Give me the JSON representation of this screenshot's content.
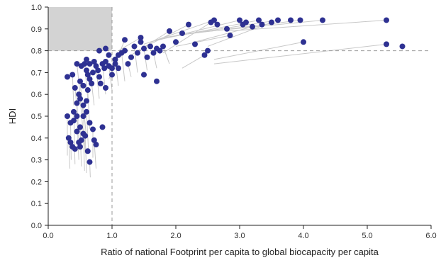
{
  "chart_data": {
    "type": "scatter",
    "title": "",
    "xlabel": "Ratio of national Footprint per capita to global biocapacity per capita",
    "ylabel": "HDI",
    "xlim": [
      0,
      6
    ],
    "ylim": [
      0,
      1
    ],
    "xticks": [
      "0.0",
      "1.0",
      "2.0",
      "3.0",
      "4.0",
      "5.0",
      "6.0"
    ],
    "yticks": [
      "0.0",
      "0.1",
      "0.2",
      "0.3",
      "0.4",
      "0.5",
      "0.6",
      "0.7",
      "0.8",
      "0.9",
      "1.0"
    ],
    "grid": false,
    "legend": "none",
    "reference_lines": {
      "x": 1.0,
      "y": 0.8
    },
    "target_region": {
      "x": [
        0,
        1.0
      ],
      "y": [
        0.8,
        1.0
      ]
    },
    "colors": {
      "point": "#2e3192",
      "trail": "#c8c8c8",
      "target": "#d3d3d3",
      "reference": "#999999"
    },
    "points": [
      {
        "x": 0.3,
        "y": 0.5
      },
      {
        "x": 0.35,
        "y": 0.47
      },
      {
        "x": 0.4,
        "y": 0.52
      },
      {
        "x": 0.45,
        "y": 0.5
      },
      {
        "x": 0.5,
        "y": 0.45
      },
      {
        "x": 0.55,
        "y": 0.42
      },
      {
        "x": 0.32,
        "y": 0.4
      },
      {
        "x": 0.38,
        "y": 0.36
      },
      {
        "x": 0.42,
        "y": 0.35
      },
      {
        "x": 0.48,
        "y": 0.38
      },
      {
        "x": 0.52,
        "y": 0.39
      },
      {
        "x": 0.58,
        "y": 0.41
      },
      {
        "x": 0.62,
        "y": 0.34
      },
      {
        "x": 0.65,
        "y": 0.29
      },
      {
        "x": 0.55,
        "y": 0.5
      },
      {
        "x": 0.6,
        "y": 0.52
      },
      {
        "x": 0.65,
        "y": 0.47
      },
      {
        "x": 0.7,
        "y": 0.44
      },
      {
        "x": 0.72,
        "y": 0.39
      },
      {
        "x": 0.75,
        "y": 0.37
      },
      {
        "x": 0.85,
        "y": 0.45
      },
      {
        "x": 0.45,
        "y": 0.56
      },
      {
        "x": 0.5,
        "y": 0.58
      },
      {
        "x": 0.55,
        "y": 0.55
      },
      {
        "x": 0.6,
        "y": 0.57
      },
      {
        "x": 0.42,
        "y": 0.63
      },
      {
        "x": 0.48,
        "y": 0.6
      },
      {
        "x": 0.5,
        "y": 0.66
      },
      {
        "x": 0.55,
        "y": 0.64
      },
      {
        "x": 0.62,
        "y": 0.62
      },
      {
        "x": 0.3,
        "y": 0.68
      },
      {
        "x": 0.38,
        "y": 0.69
      },
      {
        "x": 0.45,
        "y": 0.74
      },
      {
        "x": 0.52,
        "y": 0.73
      },
      {
        "x": 0.57,
        "y": 0.74
      },
      {
        "x": 0.6,
        "y": 0.71
      },
      {
        "x": 0.62,
        "y": 0.69
      },
      {
        "x": 0.65,
        "y": 0.67
      },
      {
        "x": 0.68,
        "y": 0.65
      },
      {
        "x": 0.7,
        "y": 0.7
      },
      {
        "x": 0.72,
        "y": 0.75
      },
      {
        "x": 0.75,
        "y": 0.73
      },
      {
        "x": 0.78,
        "y": 0.71
      },
      {
        "x": 0.8,
        "y": 0.68
      },
      {
        "x": 0.82,
        "y": 0.65
      },
      {
        "x": 0.85,
        "y": 0.74
      },
      {
        "x": 0.88,
        "y": 0.72
      },
      {
        "x": 0.9,
        "y": 0.75
      },
      {
        "x": 0.95,
        "y": 0.73
      },
      {
        "x": 1.0,
        "y": 0.72
      },
      {
        "x": 1.05,
        "y": 0.76
      },
      {
        "x": 1.1,
        "y": 0.78
      },
      {
        "x": 1.15,
        "y": 0.79
      },
      {
        "x": 1.2,
        "y": 0.8
      },
      {
        "x": 0.9,
        "y": 0.63
      },
      {
        "x": 1.0,
        "y": 0.69
      },
      {
        "x": 0.6,
        "y": 0.76
      },
      {
        "x": 0.65,
        "y": 0.74
      },
      {
        "x": 0.8,
        "y": 0.8
      },
      {
        "x": 0.9,
        "y": 0.81
      },
      {
        "x": 0.95,
        "y": 0.78
      },
      {
        "x": 1.05,
        "y": 0.74
      },
      {
        "x": 1.1,
        "y": 0.72
      },
      {
        "x": 1.25,
        "y": 0.74
      },
      {
        "x": 1.3,
        "y": 0.77
      },
      {
        "x": 1.35,
        "y": 0.82
      },
      {
        "x": 1.4,
        "y": 0.79
      },
      {
        "x": 1.45,
        "y": 0.84
      },
      {
        "x": 1.5,
        "y": 0.81
      },
      {
        "x": 1.55,
        "y": 0.77
      },
      {
        "x": 1.6,
        "y": 0.82
      },
      {
        "x": 1.65,
        "y": 0.79
      },
      {
        "x": 1.7,
        "y": 0.81
      },
      {
        "x": 1.75,
        "y": 0.8
      },
      {
        "x": 1.8,
        "y": 0.82
      },
      {
        "x": 1.5,
        "y": 0.69
      },
      {
        "x": 1.7,
        "y": 0.66
      },
      {
        "x": 1.2,
        "y": 0.85
      },
      {
        "x": 1.45,
        "y": 0.86
      },
      {
        "x": 1.9,
        "y": 0.89
      },
      {
        "x": 2.0,
        "y": 0.84
      },
      {
        "x": 2.1,
        "y": 0.88
      },
      {
        "x": 2.2,
        "y": 0.92
      },
      {
        "x": 2.3,
        "y": 0.83
      },
      {
        "x": 2.45,
        "y": 0.78
      },
      {
        "x": 2.5,
        "y": 0.8
      },
      {
        "x": 2.55,
        "y": 0.93
      },
      {
        "x": 2.6,
        "y": 0.94
      },
      {
        "x": 2.65,
        "y": 0.92
      },
      {
        "x": 2.8,
        "y": 0.9
      },
      {
        "x": 2.85,
        "y": 0.87
      },
      {
        "x": 3.0,
        "y": 0.94
      },
      {
        "x": 3.05,
        "y": 0.92
      },
      {
        "x": 3.1,
        "y": 0.93
      },
      {
        "x": 3.2,
        "y": 0.91
      },
      {
        "x": 3.3,
        "y": 0.94
      },
      {
        "x": 3.35,
        "y": 0.92
      },
      {
        "x": 3.5,
        "y": 0.93
      },
      {
        "x": 3.6,
        "y": 0.94
      },
      {
        "x": 3.8,
        "y": 0.94
      },
      {
        "x": 3.95,
        "y": 0.94
      },
      {
        "x": 4.0,
        "y": 0.84
      },
      {
        "x": 4.3,
        "y": 0.94
      },
      {
        "x": 5.3,
        "y": 0.94
      },
      {
        "x": 5.3,
        "y": 0.83
      },
      {
        "x": 5.55,
        "y": 0.82
      },
      {
        "x": 0.4,
        "y": 0.48
      },
      {
        "x": 0.45,
        "y": 0.43
      },
      {
        "x": 0.35,
        "y": 0.38
      },
      {
        "x": 0.5,
        "y": 0.36
      }
    ],
    "trails": [
      {
        "from": [
          0.3,
          0.32
        ],
        "to": [
          0.3,
          0.5
        ]
      },
      {
        "from": [
          0.36,
          0.3
        ],
        "to": [
          0.35,
          0.47
        ]
      },
      {
        "from": [
          0.42,
          0.28
        ],
        "to": [
          0.4,
          0.52
        ]
      },
      {
        "from": [
          0.48,
          0.3
        ],
        "to": [
          0.45,
          0.5
        ]
      },
      {
        "from": [
          0.52,
          0.27
        ],
        "to": [
          0.5,
          0.45
        ]
      },
      {
        "from": [
          0.57,
          0.25
        ],
        "to": [
          0.55,
          0.42
        ]
      },
      {
        "from": [
          0.34,
          0.26
        ],
        "to": [
          0.32,
          0.4
        ]
      },
      {
        "from": [
          0.6,
          0.24
        ],
        "to": [
          0.58,
          0.41
        ]
      },
      {
        "from": [
          0.66,
          0.22
        ],
        "to": [
          0.65,
          0.29
        ]
      },
      {
        "from": [
          0.58,
          0.33
        ],
        "to": [
          0.55,
          0.5
        ]
      },
      {
        "from": [
          0.63,
          0.35
        ],
        "to": [
          0.6,
          0.52
        ]
      },
      {
        "from": [
          0.7,
          0.31
        ],
        "to": [
          0.7,
          0.44
        ]
      },
      {
        "from": [
          0.75,
          0.26
        ],
        "to": [
          0.72,
          0.39
        ]
      },
      {
        "from": [
          0.48,
          0.4
        ],
        "to": [
          0.45,
          0.56
        ]
      },
      {
        "from": [
          0.55,
          0.42
        ],
        "to": [
          0.5,
          0.58
        ]
      },
      {
        "from": [
          0.6,
          0.4
        ],
        "to": [
          0.55,
          0.55
        ]
      },
      {
        "from": [
          0.65,
          0.44
        ],
        "to": [
          0.62,
          0.62
        ]
      },
      {
        "from": [
          0.47,
          0.48
        ],
        "to": [
          0.42,
          0.63
        ]
      },
      {
        "from": [
          0.55,
          0.5
        ],
        "to": [
          0.5,
          0.66
        ]
      },
      {
        "from": [
          0.4,
          0.55
        ],
        "to": [
          0.38,
          0.69
        ]
      },
      {
        "from": [
          0.5,
          0.6
        ],
        "to": [
          0.45,
          0.74
        ]
      },
      {
        "from": [
          0.62,
          0.58
        ],
        "to": [
          0.57,
          0.74
        ]
      },
      {
        "from": [
          0.72,
          0.55
        ],
        "to": [
          0.68,
          0.65
        ]
      },
      {
        "from": [
          0.8,
          0.58
        ],
        "to": [
          0.75,
          0.73
        ]
      },
      {
        "from": [
          0.9,
          0.6
        ],
        "to": [
          0.85,
          0.74
        ]
      },
      {
        "from": [
          1.0,
          0.62
        ],
        "to": [
          0.95,
          0.73
        ]
      },
      {
        "from": [
          1.1,
          0.64
        ],
        "to": [
          1.05,
          0.76
        ]
      },
      {
        "from": [
          1.2,
          0.66
        ],
        "to": [
          1.15,
          0.79
        ]
      },
      {
        "from": [
          1.3,
          0.68
        ],
        "to": [
          1.25,
          0.74
        ]
      },
      {
        "from": [
          1.4,
          0.7
        ],
        "to": [
          1.35,
          0.82
        ]
      },
      {
        "from": [
          1.55,
          0.71
        ],
        "to": [
          1.5,
          0.81
        ]
      },
      {
        "from": [
          1.7,
          0.72
        ],
        "to": [
          1.65,
          0.79
        ]
      },
      {
        "from": [
          1.9,
          0.74
        ],
        "to": [
          1.8,
          0.82
        ]
      },
      {
        "from": [
          1.3,
          0.78
        ],
        "to": [
          1.9,
          0.89
        ]
      },
      {
        "from": [
          1.4,
          0.8
        ],
        "to": [
          2.2,
          0.92
        ]
      },
      {
        "from": [
          1.5,
          0.83
        ],
        "to": [
          2.6,
          0.94
        ]
      },
      {
        "from": [
          1.6,
          0.84
        ],
        "to": [
          3.0,
          0.94
        ]
      },
      {
        "from": [
          1.7,
          0.85
        ],
        "to": [
          3.3,
          0.94
        ]
      },
      {
        "from": [
          1.8,
          0.86
        ],
        "to": [
          3.6,
          0.94
        ]
      },
      {
        "from": [
          2.0,
          0.87
        ],
        "to": [
          3.95,
          0.94
        ]
      },
      {
        "from": [
          2.2,
          0.88
        ],
        "to": [
          4.3,
          0.94
        ]
      },
      {
        "from": [
          2.8,
          0.89
        ],
        "to": [
          5.3,
          0.94
        ]
      },
      {
        "from": [
          2.0,
          0.82
        ],
        "to": [
          2.85,
          0.87
        ]
      },
      {
        "from": [
          2.3,
          0.84
        ],
        "to": [
          3.2,
          0.91
        ]
      },
      {
        "from": [
          2.1,
          0.72
        ],
        "to": [
          2.45,
          0.78
        ]
      },
      {
        "from": [
          2.6,
          0.76
        ],
        "to": [
          4.0,
          0.84
        ]
      },
      {
        "from": [
          2.6,
          0.74
        ],
        "to": [
          5.3,
          0.83
        ]
      },
      {
        "from": [
          2.5,
          0.82
        ],
        "to": [
          3.5,
          0.93
        ]
      },
      {
        "from": [
          1.8,
          0.79
        ],
        "to": [
          2.55,
          0.93
        ]
      },
      {
        "from": [
          1.1,
          0.8
        ],
        "to": [
          1.45,
          0.86
        ]
      },
      {
        "from": [
          0.95,
          0.67
        ],
        "to": [
          1.2,
          0.85
        ]
      }
    ]
  }
}
